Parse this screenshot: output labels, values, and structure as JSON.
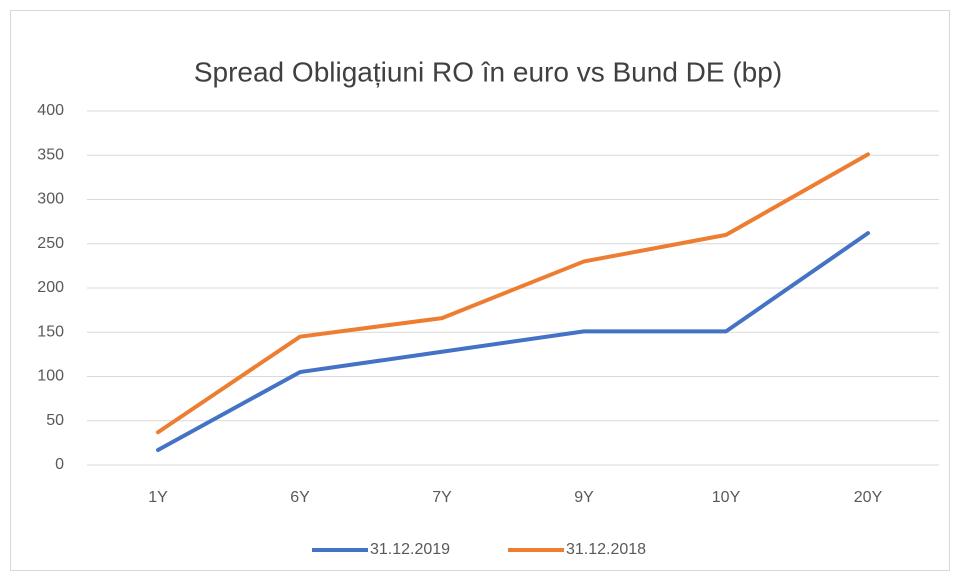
{
  "chart_data": {
    "type": "line",
    "title": "Spread Obligațiuni RO în euro vs Bund DE (bp)",
    "categories": [
      "1Y",
      "6Y",
      "7Y",
      "9Y",
      "10Y",
      "20Y"
    ],
    "series": [
      {
        "name": "31.12.2019",
        "color": "#4472c4",
        "values": [
          17,
          105,
          128,
          151,
          151,
          262
        ]
      },
      {
        "name": "31.12.2018",
        "color": "#ed7d31",
        "values": [
          37,
          145,
          166,
          230,
          260,
          351
        ]
      }
    ],
    "ylim": [
      0,
      400
    ],
    "yticks": [
      0,
      50,
      100,
      150,
      200,
      250,
      300,
      350,
      400
    ],
    "grid": true,
    "legend": "bottom"
  }
}
